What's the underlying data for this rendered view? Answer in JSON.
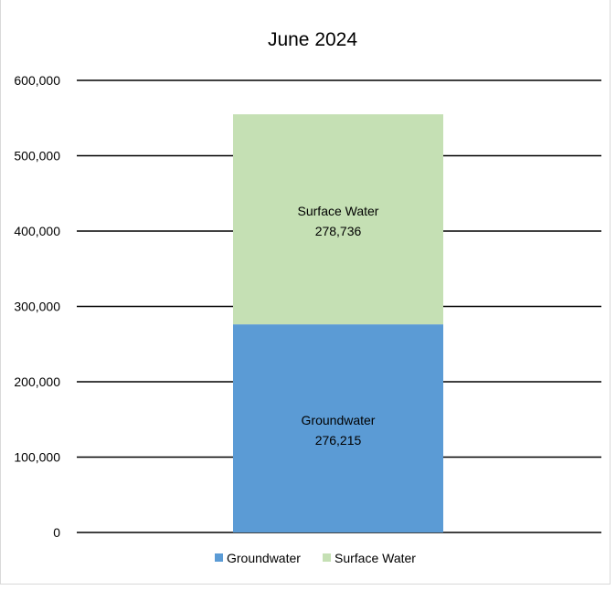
{
  "chart_data": {
    "type": "bar",
    "stacked": true,
    "title": "June 2024",
    "categories": [
      "June 2024"
    ],
    "series": [
      {
        "name": "Groundwater",
        "values": [
          276215
        ],
        "label": "276,215",
        "color": "#5b9bd5"
      },
      {
        "name": "Surface Water",
        "values": [
          278736
        ],
        "label": "278,736",
        "color": "#c5e0b4"
      }
    ],
    "ylim": [
      0,
      600000
    ],
    "yticks": [
      0,
      100000,
      200000,
      300000,
      400000,
      500000,
      600000
    ],
    "ytick_labels": [
      "0",
      "100,000",
      "200,000",
      "300,000",
      "400,000",
      "500,000",
      "600,000"
    ],
    "grid": true,
    "legend": "bottom"
  }
}
